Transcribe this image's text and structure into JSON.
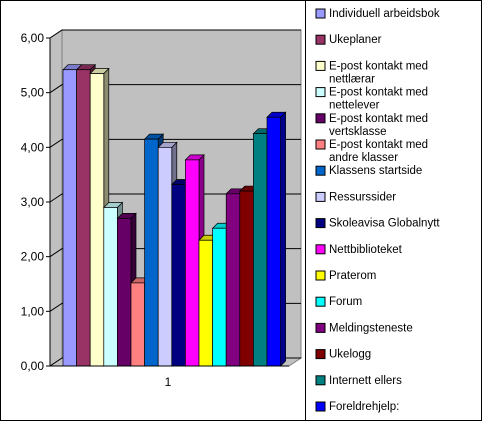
{
  "chart_data": {
    "type": "bar",
    "categories": [
      "1"
    ],
    "ylim": [
      0,
      6
    ],
    "yticks": [
      "0,00",
      "1,00",
      "2,00",
      "3,00",
      "4,00",
      "5,00",
      "6,00"
    ],
    "ytick_values": [
      0,
      1,
      2,
      3,
      4,
      5,
      6
    ],
    "grid": true,
    "legend_position": "right",
    "series": [
      {
        "name": "Individuell arbeidsbok",
        "values": [
          5.42
        ],
        "color": "#9999ff"
      },
      {
        "name": "Ukeplaner",
        "values": [
          5.42
        ],
        "color": "#993366"
      },
      {
        "name": "E-post kontakt med nettlærar",
        "values": [
          5.35
        ],
        "color": "#ffffcc"
      },
      {
        "name": "E-post kontakt med nettelever",
        "values": [
          2.9
        ],
        "color": "#ccffff"
      },
      {
        "name": "E-post kontakt med vertsklasse",
        "values": [
          2.7
        ],
        "color": "#660066"
      },
      {
        "name": "E-post kontakt med andre klasser",
        "values": [
          1.52
        ],
        "color": "#ff8080"
      },
      {
        "name": "Klassens startside",
        "values": [
          4.15
        ],
        "color": "#0066cc"
      },
      {
        "name": "Ressurssider",
        "values": [
          4.0
        ],
        "color": "#ccccff"
      },
      {
        "name": "Skoleavisa Globalnytt",
        "values": [
          3.32
        ],
        "color": "#000080"
      },
      {
        "name": "Nettbiblioteket",
        "values": [
          3.77
        ],
        "color": "#ff00ff"
      },
      {
        "name": "Praterom",
        "values": [
          2.3
        ],
        "color": "#ffff00"
      },
      {
        "name": "Forum",
        "values": [
          2.52
        ],
        "color": "#00ffff"
      },
      {
        "name": "Meldingsteneste",
        "values": [
          3.15
        ],
        "color": "#800080"
      },
      {
        "name": "Ukelogg",
        "values": [
          3.2
        ],
        "color": "#800000"
      },
      {
        "name": "Internett ellers",
        "values": [
          4.25
        ],
        "color": "#008080"
      },
      {
        "name": "Foreldrehjelp:",
        "values": [
          4.55
        ],
        "color": "#0000ff"
      }
    ]
  }
}
